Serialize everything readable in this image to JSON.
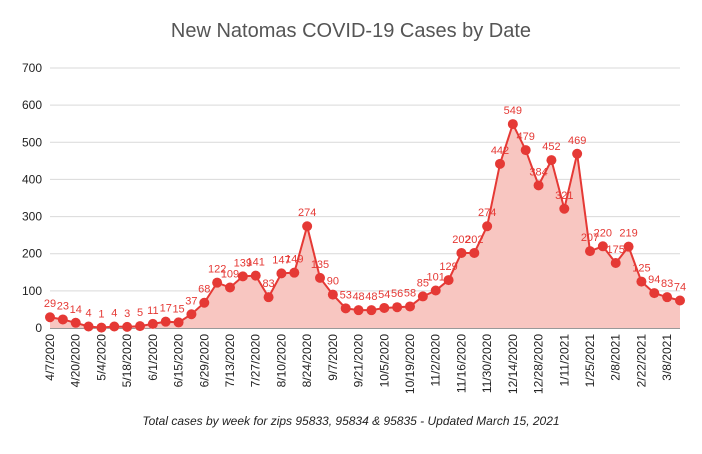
{
  "chart_data": {
    "type": "area",
    "title": "New Natomas COVID-19 Cases by Date",
    "caption": "Total cases by week for zips 95833, 95834 & 95835 - Updated March 15, 2021",
    "xlabel": "",
    "ylabel": "",
    "ylim": [
      0,
      700
    ],
    "yticks": [
      0,
      100,
      200,
      300,
      400,
      500,
      600,
      700
    ],
    "grid": true,
    "legend": "none",
    "colors": {
      "line": "#e53935",
      "fill": "#f8c6c1",
      "label": "#e53935"
    },
    "x": [
      "4/7/2020",
      "4/13/2020",
      "4/20/2020",
      "4/27/2020",
      "5/4/2020",
      "5/11/2020",
      "5/18/2020",
      "5/25/2020",
      "6/1/2020",
      "6/8/2020",
      "6/15/2020",
      "6/22/2020",
      "6/29/2020",
      "7/6/2020",
      "7/13/2020",
      "7/20/2020",
      "7/27/2020",
      "8/3/2020",
      "8/10/2020",
      "8/17/2020",
      "8/24/2020",
      "8/31/2020",
      "9/7/2020",
      "9/14/2020",
      "9/21/2020",
      "9/28/2020",
      "10/5/2020",
      "10/12/2020",
      "10/19/2020",
      "10/26/2020",
      "11/2/2020",
      "11/9/2020",
      "11/16/2020",
      "11/23/2020",
      "11/30/2020",
      "12/7/2020",
      "12/14/2020",
      "12/21/2020",
      "12/28/2020",
      "1/4/2021",
      "1/11/2021",
      "1/18/2021",
      "1/25/2021",
      "2/1/2021",
      "2/8/2021",
      "2/15/2021",
      "2/22/2021",
      "3/1/2021",
      "3/8/2021",
      "3/15/2021"
    ],
    "tick_labels": [
      "4/7/2020",
      "4/20/2020",
      "5/4/2020",
      "5/18/2020",
      "6/1/2020",
      "6/15/2020",
      "6/29/2020",
      "7/13/2020",
      "7/27/2020",
      "8/10/2020",
      "8/24/2020",
      "9/7/2020",
      "9/21/2020",
      "10/5/2020",
      "10/19/2020",
      "11/2/2020",
      "11/16/2020",
      "11/30/2020",
      "12/14/2020",
      "12/28/2020",
      "1/11/2021",
      "1/25/2021",
      "2/8/2021",
      "2/22/2021",
      "3/8/2021"
    ],
    "series": [
      {
        "values": [
          29,
          23,
          14,
          4,
          1,
          4,
          3,
          5,
          11,
          17,
          15,
          37,
          68,
          122,
          109,
          139,
          141,
          83,
          147,
          149,
          274,
          135,
          90,
          53,
          48,
          48,
          54,
          56,
          58,
          85,
          101,
          129,
          202,
          202,
          274,
          442,
          549,
          479,
          384,
          452,
          321,
          469,
          207,
          220,
          175,
          219,
          125,
          94,
          83,
          74
        ]
      }
    ]
  }
}
